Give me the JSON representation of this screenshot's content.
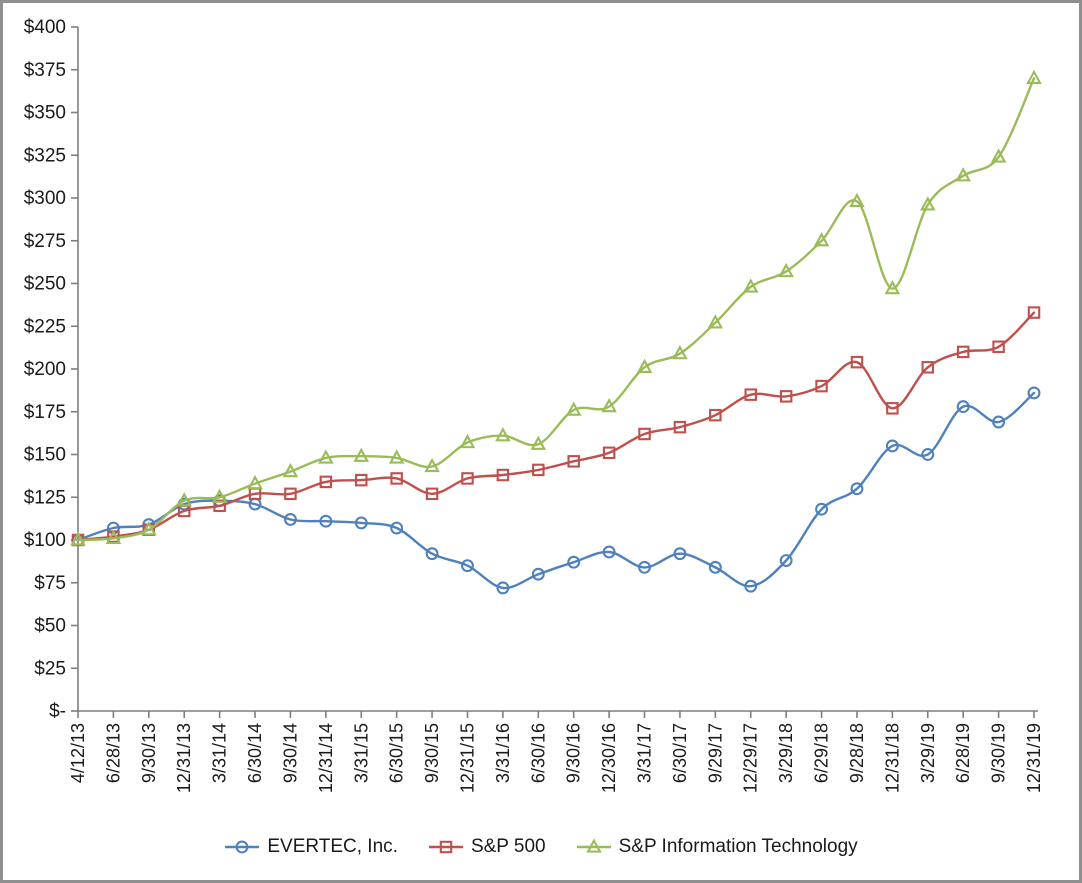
{
  "chart_data": {
    "type": "line",
    "title": "",
    "xlabel": "",
    "ylabel": "",
    "ylim": [
      0,
      400
    ],
    "y_tick_step": 25,
    "grid": false,
    "legend_position": "bottom",
    "y_tick_labels": [
      "$-",
      "$25",
      "$50",
      "$75",
      "$100",
      "$125",
      "$150",
      "$175",
      "$200",
      "$225",
      "$250",
      "$275",
      "$300",
      "$325",
      "$350",
      "$375",
      "$400"
    ],
    "categories": [
      "4/12/13",
      "6/28/13",
      "9/30/13",
      "12/31/13",
      "3/31/14",
      "6/30/14",
      "9/30/14",
      "12/31/14",
      "3/31/15",
      "6/30/15",
      "9/30/15",
      "12/31/15",
      "3/31/16",
      "6/30/16",
      "9/30/16",
      "12/30/16",
      "3/31/17",
      "6/30/17",
      "9/29/17",
      "12/29/17",
      "3/29/18",
      "6/29/18",
      "9/28/18",
      "12/31/18",
      "3/29/19",
      "6/28/19",
      "9/30/19",
      "12/31/19"
    ],
    "series": [
      {
        "name": "EVERTEC, Inc.",
        "marker": "circle",
        "color": "#4F81BD",
        "values": [
          100,
          107,
          109,
          121,
          123,
          121,
          112,
          111,
          110,
          107,
          92,
          85,
          72,
          80,
          87,
          93,
          84,
          92,
          84,
          73,
          88,
          118,
          130,
          155,
          150,
          178,
          169,
          186
        ]
      },
      {
        "name": "S&P 500",
        "marker": "square",
        "color": "#C0504D",
        "values": [
          100,
          102,
          106,
          117,
          120,
          127,
          127,
          134,
          135,
          136,
          127,
          136,
          138,
          141,
          146,
          151,
          162,
          166,
          173,
          185,
          184,
          190,
          204,
          177,
          201,
          210,
          213,
          233
        ]
      },
      {
        "name": "S&P Information Technology",
        "marker": "triangle",
        "color": "#9BBB59",
        "values": [
          100,
          101,
          106,
          123,
          125,
          133,
          140,
          148,
          149,
          148,
          143,
          157,
          161,
          156,
          176,
          178,
          201,
          209,
          227,
          248,
          257,
          275,
          298,
          247,
          296,
          313,
          324,
          370
        ]
      }
    ],
    "axis_color": "#7f7f7f",
    "label_color": "#1a1a1a",
    "frame_border_color": "#8f8f8f"
  }
}
